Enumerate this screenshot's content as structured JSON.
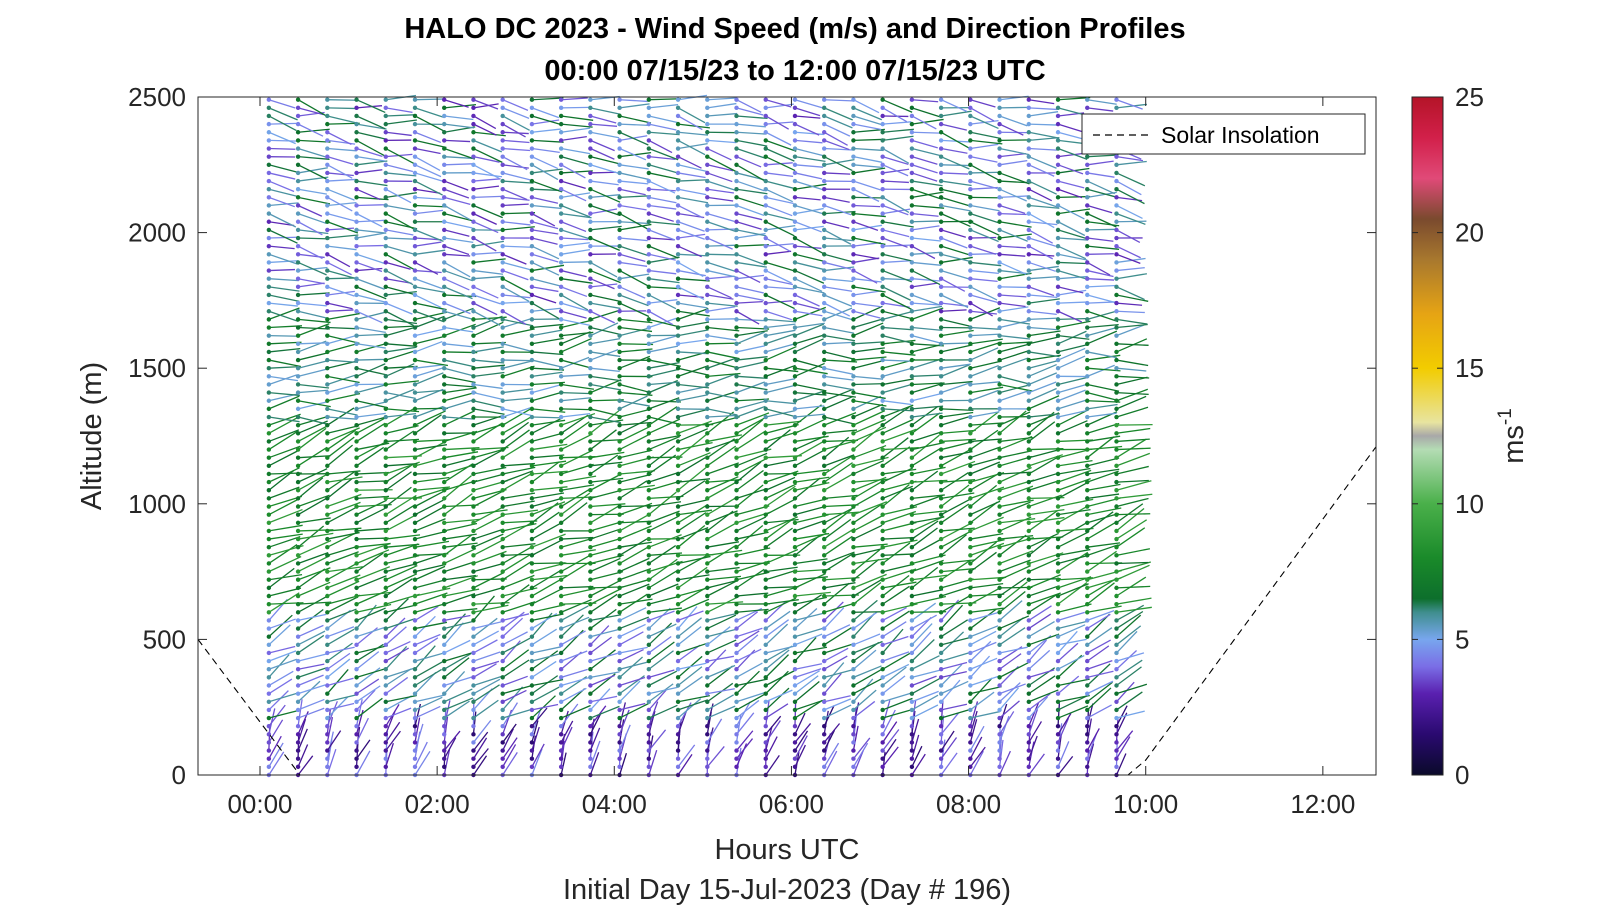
{
  "chart_data": {
    "type": "quiver",
    "title": "HALO DC 2023 - Wind Speed (m/s) and Direction Profiles",
    "subtitle": "00:00 07/15/23 to 12:00 07/15/23  UTC",
    "xlabel": "Hours UTC",
    "xlabel2": "Initial Day 15-Jul-2023 (Day # 196)",
    "ylabel": "Altitude (m)",
    "xlim": [
      -0.7,
      12.6
    ],
    "ylim": [
      0,
      2500
    ],
    "xticks": [
      0,
      2,
      4,
      6,
      8,
      10,
      12
    ],
    "xtick_labels": [
      "00:00",
      "02:00",
      "04:00",
      "06:00",
      "08:00",
      "10:00",
      "12:00"
    ],
    "yticks": [
      0,
      500,
      1000,
      1500,
      2000,
      2500
    ],
    "ytick_labels": [
      "0",
      "500",
      "1000",
      "1500",
      "2000",
      "2500"
    ],
    "legend": {
      "label": "Solar Insolation",
      "location": "top-right",
      "style": "dashed"
    },
    "colorbar": {
      "label_base": "ms",
      "label_exp": "-1",
      "limits": [
        0,
        25
      ],
      "ticks": [
        0,
        5,
        10,
        15,
        20,
        25
      ],
      "tick_labels": [
        "0",
        "5",
        "10",
        "15",
        "20",
        "25"
      ],
      "colormap": [
        [
          0,
          "#0a0a2a"
        ],
        [
          1.5,
          "#2a0a70"
        ],
        [
          3,
          "#5a20b0"
        ],
        [
          4,
          "#7a6ee6"
        ],
        [
          5,
          "#78a6ee"
        ],
        [
          6,
          "#3f8e8e"
        ],
        [
          6.5,
          "#0d6f2c"
        ],
        [
          8,
          "#1a8a2a"
        ],
        [
          10,
          "#4ab04a"
        ],
        [
          12,
          "#b4dcb4"
        ],
        [
          12.5,
          "#a8a8a8"
        ],
        [
          13,
          "#e8e4a0"
        ],
        [
          15,
          "#f2cc00"
        ],
        [
          17,
          "#e6a414"
        ],
        [
          19,
          "#a8782e"
        ],
        [
          20.5,
          "#7a4a2e"
        ],
        [
          22,
          "#e04a78"
        ],
        [
          23.5,
          "#d2204a"
        ],
        [
          25,
          "#b41428"
        ]
      ]
    },
    "solar_insolation": {
      "x": [
        -0.7,
        0.45,
        9.8,
        10.0,
        12.6
      ],
      "y": [
        500,
        0,
        0,
        55,
        1210
      ]
    },
    "profiles": {
      "x_start": 0.1,
      "x_step": 0.33,
      "x_end": 9.8,
      "altitude_step_m": 30,
      "altitude_max_m": 2500,
      "speed_layers": [
        {
          "alt": [
            0,
            200
          ],
          "speed_range": [
            1.5,
            4.5
          ],
          "direction_deg": 200
        },
        {
          "alt": [
            200,
            600
          ],
          "speed_range": [
            3.5,
            7
          ],
          "direction_deg": 240
        },
        {
          "alt": [
            600,
            1300
          ],
          "speed_range": [
            6.5,
            9
          ],
          "direction_deg": 250
        },
        {
          "alt": [
            1300,
            1700
          ],
          "speed_range": [
            5,
            7.5
          ],
          "direction_deg": 265
        },
        {
          "alt": [
            1700,
            2500
          ],
          "speed_range": [
            3,
            7
          ],
          "direction_deg": 280
        }
      ]
    }
  }
}
